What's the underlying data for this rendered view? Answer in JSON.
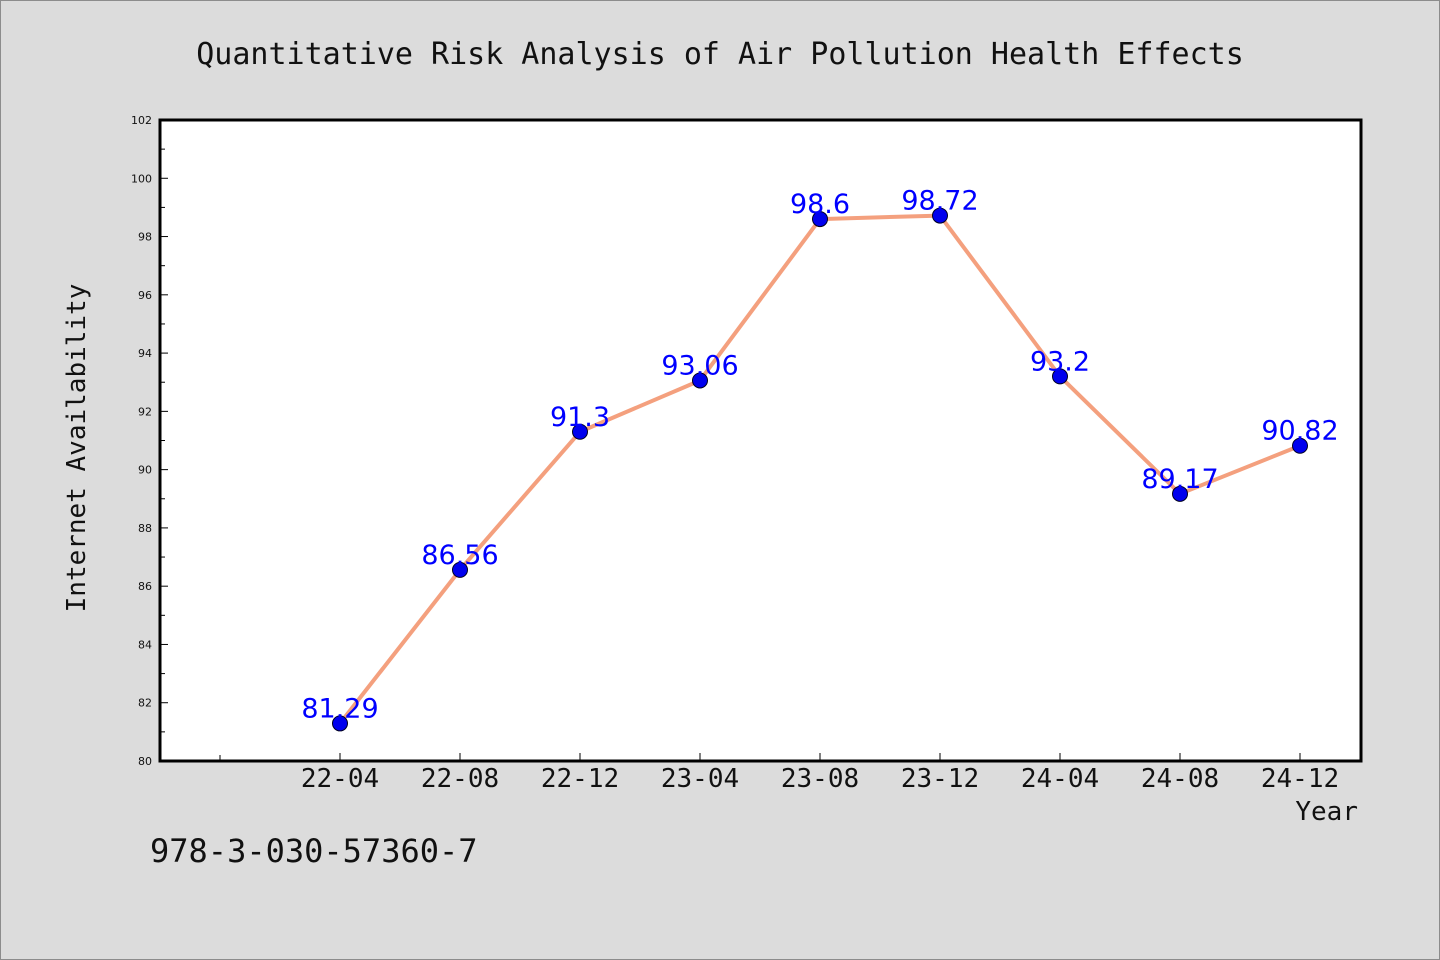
{
  "chart_data": {
    "type": "line",
    "title": "Quantitative Risk Analysis of Air Pollution Health Effects",
    "xlabel": "Year",
    "ylabel": "Internet Availability",
    "categories": [
      "22-04",
      "22-08",
      "22-12",
      "23-04",
      "23-08",
      "23-12",
      "24-04",
      "24-08",
      "24-12"
    ],
    "series": [
      {
        "values": [
          81.29,
          86.56,
          91.3,
          93.06,
          98.6,
          98.72,
          93.2,
          89.17,
          90.82
        ]
      }
    ],
    "data_labels": [
      "81.29",
      "86.56",
      "91.3",
      "93.06",
      "98.6",
      "98.72",
      "93.2",
      "89.17",
      "90.82"
    ],
    "ylim": [
      80,
      102
    ],
    "yticks": [
      80,
      82,
      84,
      86,
      88,
      90,
      92,
      94,
      96,
      98,
      100,
      102
    ],
    "grid": false,
    "colors": {
      "line": "#f4a07e",
      "marker": "#0000ee",
      "label": "#0000ff",
      "plot_bg": "#ffffff",
      "page_bg": "#dcdcdc"
    }
  },
  "footer": {
    "id_text": "978-3-030-57360-7"
  }
}
